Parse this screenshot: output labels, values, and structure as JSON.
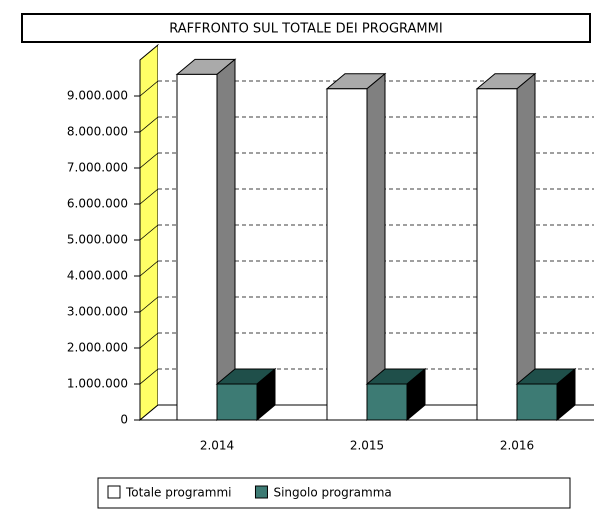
{
  "chart_data": {
    "type": "bar3d",
    "title": "RAFFRONTO SUL TOTALE DEI PROGRAMMI",
    "categories": [
      "2.014",
      "2.015",
      "2.016"
    ],
    "series": [
      {
        "name": "Totale programmi",
        "color": "#ffffff",
        "values": [
          9600000,
          9200000,
          9200000
        ]
      },
      {
        "name": "Singolo programma",
        "color": "#3d7b74",
        "values": [
          1000000,
          1000000,
          1000000
        ]
      }
    ],
    "ylim": [
      0,
      10000000
    ],
    "yticks": [
      0,
      {
        "value": 1000000,
        "label": "1.000.000"
      },
      {
        "value": 2000000,
        "label": "2.000.000"
      },
      {
        "value": 3000000,
        "label": "3.000.000"
      },
      {
        "value": 4000000,
        "label": "4.000.000"
      },
      {
        "value": 5000000,
        "label": "5.000.000"
      },
      {
        "value": 6000000,
        "label": "6.000.000"
      },
      {
        "value": 7000000,
        "label": "7.000.000"
      },
      {
        "value": 8000000,
        "label": "8.000.000"
      },
      {
        "value": 9000000,
        "label": "9.000.000"
      }
    ],
    "grid": true
  }
}
